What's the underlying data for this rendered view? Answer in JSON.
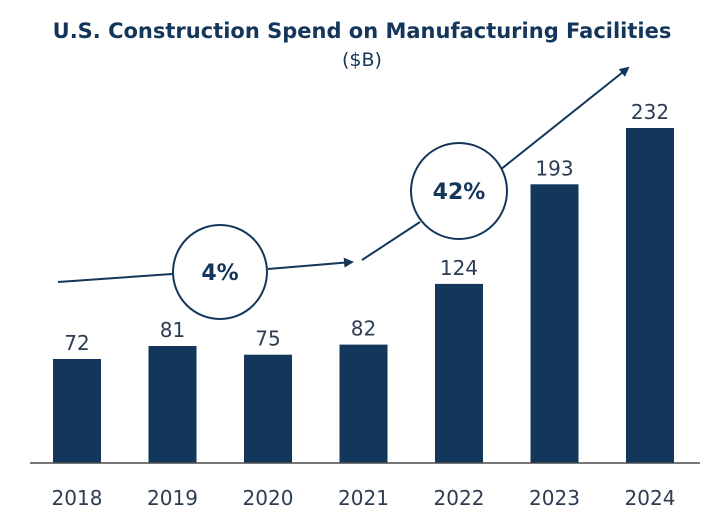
{
  "chart_data": {
    "type": "bar",
    "title": "U.S. Construction Spend on Manufacturing Facilities",
    "subtitle": "($B)",
    "categories": [
      "2018",
      "2019",
      "2020",
      "2021",
      "2022",
      "2023",
      "2024"
    ],
    "values": [
      72,
      81,
      75,
      82,
      124,
      193,
      232
    ],
    "ylim": [
      0,
      240
    ],
    "grid": false,
    "xlabel": "",
    "ylabel": "",
    "annotations": [
      {
        "label": "4%",
        "from": "2018",
        "to": "2021"
      },
      {
        "label": "42%",
        "from": "2021",
        "to": "2024"
      }
    ],
    "colors": {
      "bar": "#12375b",
      "axis": "#4a4a4a",
      "text": "#14365a",
      "arrow": "#14365a"
    }
  }
}
